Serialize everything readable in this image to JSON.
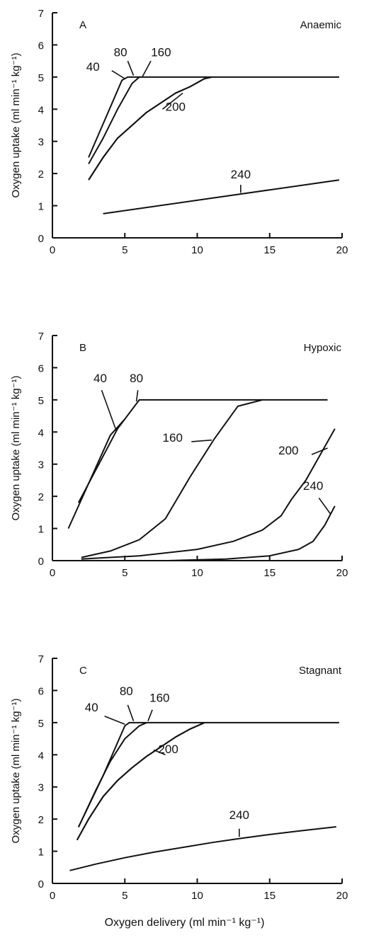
{
  "x_axis_label": "Oxygen delivery (ml min⁻¹ kg⁻¹)",
  "line_color": "#111111",
  "chart_data": [
    {
      "type": "line",
      "panel_letter": "A",
      "panel_title": "Anaemic",
      "ylabel": "Oxygen uptake (ml min⁻¹ kg⁻¹)",
      "xlabel": "",
      "xlim": [
        0,
        20
      ],
      "ylim": [
        0,
        7
      ],
      "x_ticks": [
        0,
        5,
        10,
        15,
        20
      ],
      "y_ticks": [
        0,
        1,
        2,
        3,
        4,
        5,
        6,
        7
      ],
      "grid": false,
      "series": [
        {
          "name": "40",
          "points": [
            [
              2.5,
              2.5
            ],
            [
              4.8,
              4.9
            ],
            [
              5.2,
              5.0
            ],
            [
              19.8,
              5.0
            ]
          ]
        },
        {
          "name": "80",
          "points": [
            [
              2.5,
              2.3
            ],
            [
              3.5,
              3.1
            ],
            [
              4.5,
              4.0
            ],
            [
              5.5,
              4.8
            ],
            [
              6.0,
              5.0
            ]
          ]
        },
        {
          "name": "160",
          "points": [
            [
              2.5,
              1.8
            ],
            [
              3.5,
              2.5
            ],
            [
              4.5,
              3.1
            ],
            [
              5.5,
              3.5
            ],
            [
              6.5,
              3.9
            ],
            [
              7.5,
              4.2
            ],
            [
              8.5,
              4.5
            ],
            [
              9.5,
              4.7
            ],
            [
              10.5,
              4.95
            ],
            [
              11.0,
              5.0
            ]
          ]
        },
        {
          "name": "200",
          "points": [
            [
              2.5,
              1.8
            ],
            [
              3.5,
              2.5
            ],
            [
              4.5,
              3.1
            ],
            [
              5.5,
              3.5
            ],
            [
              6.5,
              3.9
            ],
            [
              7.5,
              4.2
            ],
            [
              8.5,
              4.5
            ],
            [
              9.5,
              4.7
            ],
            [
              10.5,
              4.95
            ],
            [
              11.0,
              5.0
            ]
          ]
        },
        {
          "name": "240",
          "points": [
            [
              3.5,
              0.75
            ],
            [
              19.8,
              1.8
            ]
          ]
        }
      ],
      "annotations": [
        {
          "text": "40",
          "x": 2.8,
          "y": 5.2
        },
        {
          "text": "80",
          "x": 4.7,
          "y": 5.65
        },
        {
          "text": "160",
          "x": 7.5,
          "y": 5.65
        },
        {
          "text": "200",
          "x": 8.5,
          "y": 3.95
        },
        {
          "text": "240",
          "x": 13.0,
          "y": 1.85
        }
      ]
    },
    {
      "type": "line",
      "panel_letter": "B",
      "panel_title": "Hypoxic",
      "ylabel": "Oxygen uptake (ml min⁻¹ kg⁻¹)",
      "xlabel": "",
      "xlim": [
        0,
        20
      ],
      "ylim": [
        0,
        7
      ],
      "x_ticks": [
        0,
        5,
        10,
        15,
        20
      ],
      "y_ticks": [
        0,
        1,
        2,
        3,
        4,
        5,
        6,
        7
      ],
      "grid": false,
      "series": [
        {
          "name": "40",
          "points": [
            [
              1.1,
              1.0
            ],
            [
              4.0,
              3.9
            ],
            [
              5.0,
              4.4
            ]
          ]
        },
        {
          "name": "80",
          "points": [
            [
              1.8,
              1.8
            ],
            [
              4.5,
              4.1
            ],
            [
              6.0,
              5.0
            ],
            [
              19.0,
              5.0
            ]
          ]
        },
        {
          "name": "160",
          "points": [
            [
              2.0,
              0.1
            ],
            [
              4.0,
              0.3
            ],
            [
              6.0,
              0.65
            ],
            [
              7.8,
              1.3
            ],
            [
              9.5,
              2.6
            ],
            [
              11.2,
              3.8
            ],
            [
              12.8,
              4.8
            ],
            [
              14.5,
              5.0
            ]
          ]
        },
        {
          "name": "200",
          "points": [
            [
              2.0,
              0.05
            ],
            [
              6.0,
              0.15
            ],
            [
              10.0,
              0.35
            ],
            [
              12.5,
              0.6
            ],
            [
              14.5,
              0.95
            ],
            [
              15.8,
              1.4
            ],
            [
              16.5,
              1.9
            ],
            [
              17.5,
              2.5
            ],
            [
              18.5,
              3.3
            ],
            [
              19.5,
              4.1
            ]
          ]
        },
        {
          "name": "240",
          "points": [
            [
              2.0,
              0.0
            ],
            [
              8.0,
              0.0
            ],
            [
              12.0,
              0.05
            ],
            [
              15.0,
              0.15
            ],
            [
              17.0,
              0.35
            ],
            [
              18.0,
              0.6
            ],
            [
              18.8,
              1.1
            ],
            [
              19.5,
              1.7
            ]
          ]
        }
      ],
      "annotations": [
        {
          "text": "40",
          "x": 3.3,
          "y": 5.55
        },
        {
          "text": "80",
          "x": 5.8,
          "y": 5.55
        },
        {
          "text": "160",
          "x": 8.3,
          "y": 3.7
        },
        {
          "text": "200",
          "x": 16.3,
          "y": 3.3
        },
        {
          "text": "240",
          "x": 18.0,
          "y": 2.2
        }
      ]
    },
    {
      "type": "line",
      "panel_letter": "C",
      "panel_title": "Stagnant",
      "ylabel": "Oxygen uptake (ml min⁻¹ kg⁻¹)",
      "xlabel": "",
      "xlim": [
        0,
        20
      ],
      "ylim": [
        0,
        7
      ],
      "x_ticks": [
        0,
        5,
        10,
        15,
        20
      ],
      "y_ticks": [
        0,
        1,
        2,
        3,
        4,
        5,
        6,
        7
      ],
      "grid": false,
      "series": [
        {
          "name": "40",
          "points": [
            [
              1.8,
              1.75
            ],
            [
              3.5,
              3.35
            ],
            [
              5.0,
              4.9
            ],
            [
              5.3,
              5.0
            ],
            [
              19.8,
              5.0
            ]
          ]
        },
        {
          "name": "80",
          "points": [
            [
              1.8,
              1.75
            ],
            [
              3.0,
              2.9
            ],
            [
              4.0,
              3.8
            ],
            [
              5.0,
              4.5
            ],
            [
              6.0,
              4.9
            ],
            [
              6.5,
              5.0
            ]
          ]
        },
        {
          "name": "160",
          "points": [
            [
              1.7,
              1.35
            ],
            [
              2.5,
              2.0
            ],
            [
              3.5,
              2.7
            ],
            [
              4.5,
              3.2
            ],
            [
              5.5,
              3.6
            ],
            [
              6.5,
              3.95
            ],
            [
              7.5,
              4.25
            ],
            [
              8.5,
              4.55
            ],
            [
              9.5,
              4.8
            ],
            [
              10.5,
              5.0
            ]
          ]
        },
        {
          "name": "200",
          "points": [
            [
              1.7,
              1.35
            ],
            [
              2.5,
              2.0
            ],
            [
              3.5,
              2.7
            ],
            [
              4.5,
              3.2
            ],
            [
              5.5,
              3.6
            ],
            [
              6.5,
              3.95
            ],
            [
              7.5,
              4.25
            ],
            [
              8.5,
              4.55
            ],
            [
              9.5,
              4.8
            ],
            [
              10.5,
              5.0
            ]
          ]
        },
        {
          "name": "240",
          "points": [
            [
              1.2,
              0.4
            ],
            [
              3.0,
              0.6
            ],
            [
              5.0,
              0.8
            ],
            [
              7.0,
              0.97
            ],
            [
              9.0,
              1.12
            ],
            [
              11.0,
              1.27
            ],
            [
              13.0,
              1.4
            ],
            [
              15.0,
              1.52
            ],
            [
              17.0,
              1.63
            ],
            [
              19.6,
              1.76
            ]
          ]
        }
      ],
      "annotations": [
        {
          "text": "40",
          "x": 2.7,
          "y": 5.35
        },
        {
          "text": "80",
          "x": 5.1,
          "y": 5.85
        },
        {
          "text": "160",
          "x": 7.4,
          "y": 5.65
        },
        {
          "text": "200",
          "x": 8.0,
          "y": 4.05
        },
        {
          "text": "240",
          "x": 12.9,
          "y": 2.0
        }
      ]
    }
  ]
}
